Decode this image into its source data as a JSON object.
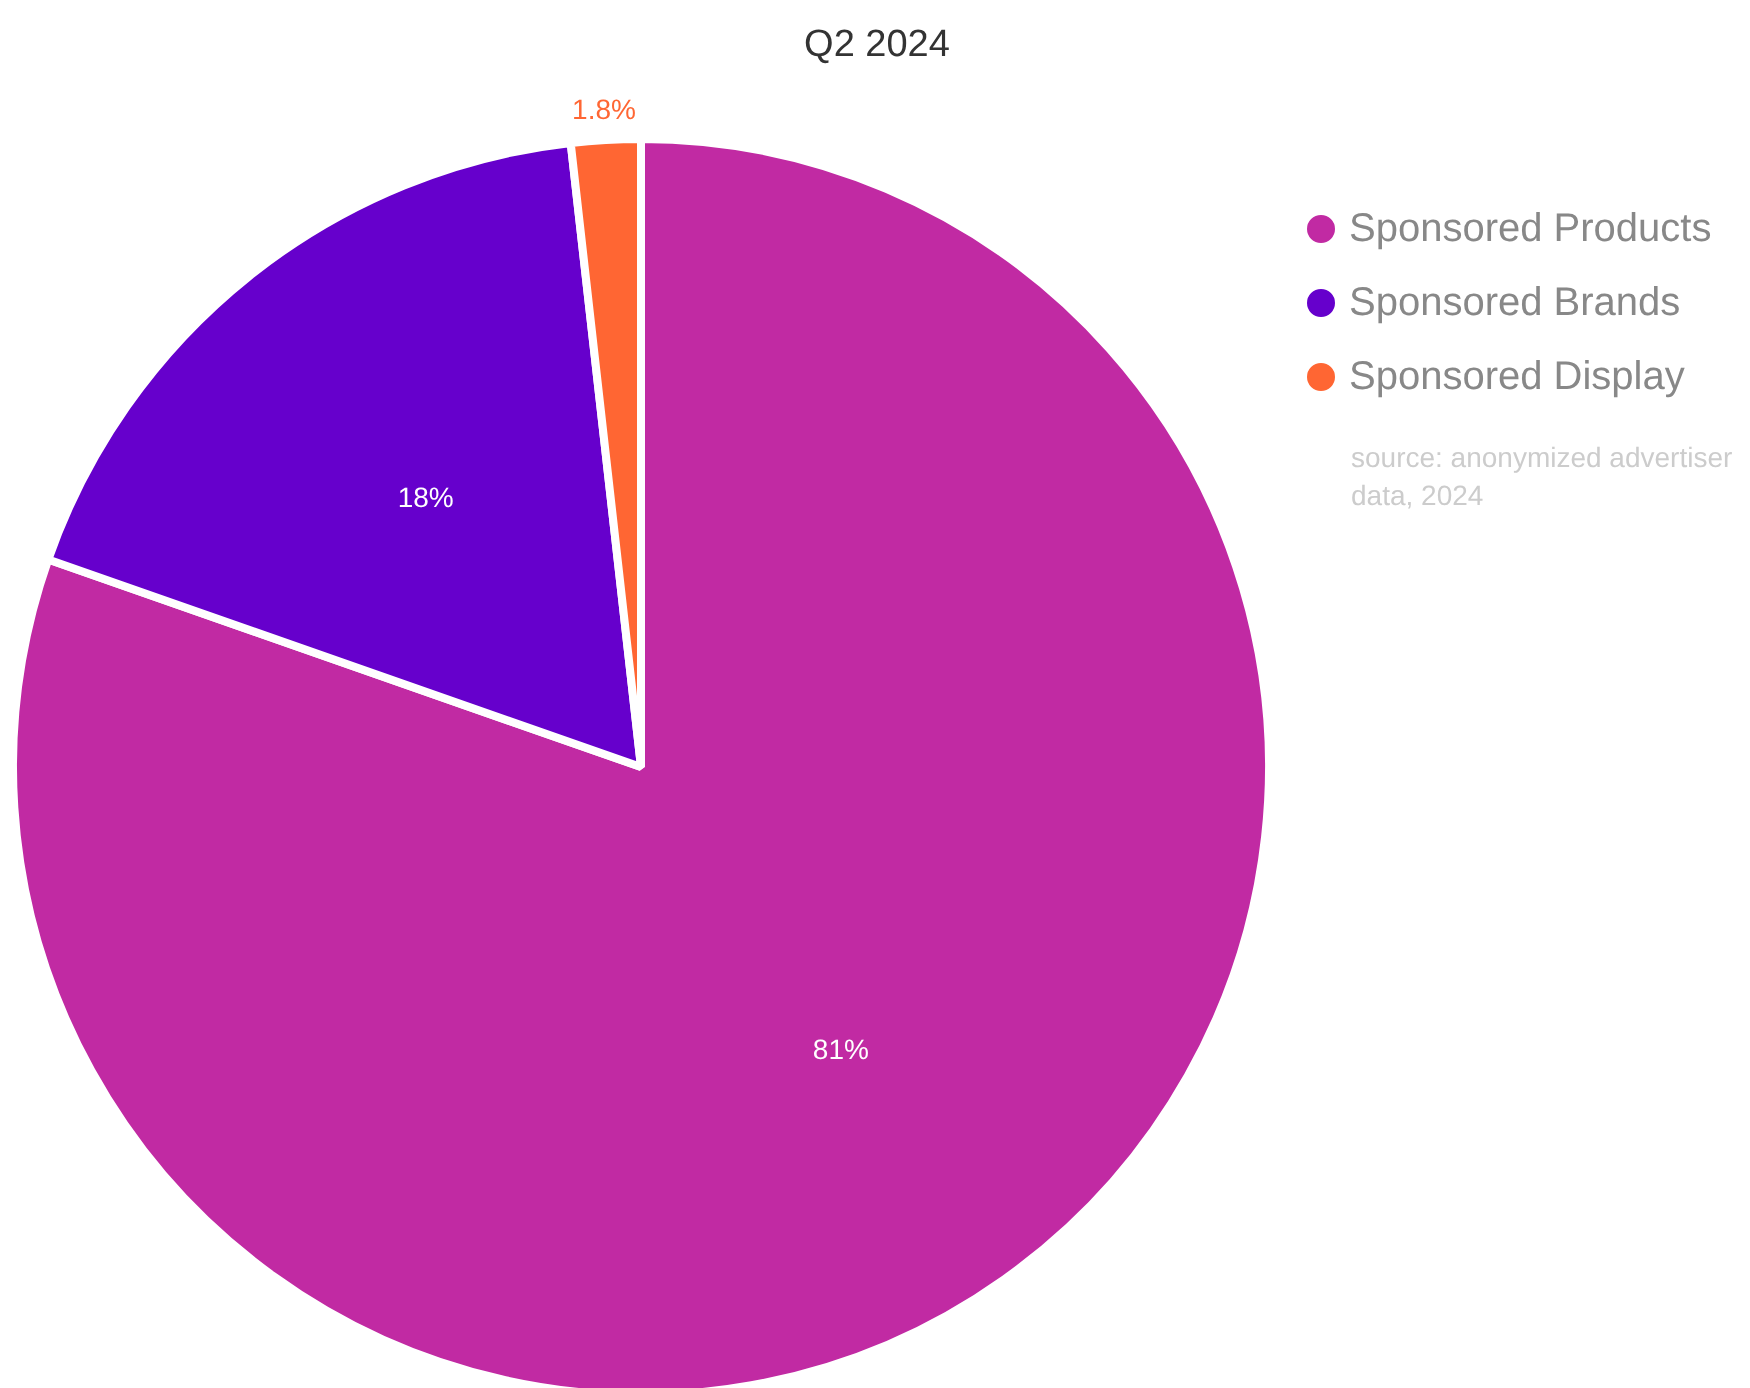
{
  "chart_data": {
    "type": "pie",
    "title": "Q2 2024",
    "categories": [
      "Sponsored Products",
      "Sponsored Brands",
      "Sponsored Display"
    ],
    "values": [
      81,
      18,
      1.8
    ],
    "colors": [
      "#c12aa3",
      "#6600cc",
      "#ff6633"
    ],
    "value_labels": [
      "81%",
      "18%",
      "1.8%"
    ],
    "legend": "top right",
    "annotations": [
      "source: anonymized advertiser data, 2024"
    ]
  }
}
